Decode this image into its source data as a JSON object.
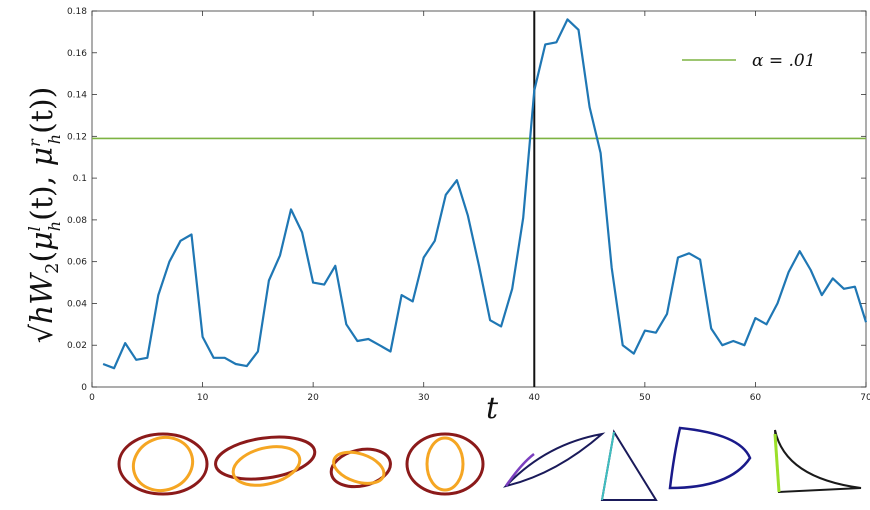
{
  "chart_data": {
    "type": "line",
    "ylabel": "√hW₂(μʰˡ(t), μʰʳ(t))",
    "ylabel_parts": {
      "root": "√",
      "h": "h",
      "W": "W",
      "W_sub": "2",
      "open": "(",
      "mu1": "μ",
      "mu1_sup": "l",
      "mu1_sub": "h",
      "t1": "(t), ",
      "mu2": "μ",
      "mu2_sup": "r",
      "mu2_sub": "h",
      "t2": "(t))"
    },
    "xlabel": "t",
    "xlim": [
      0,
      70
    ],
    "ylim": [
      0,
      0.18
    ],
    "xticks": [
      0,
      10,
      20,
      30,
      40,
      50,
      60,
      70
    ],
    "yticks": [
      0,
      0.02,
      0.04,
      0.06,
      0.08,
      0.1,
      0.12,
      0.14,
      0.16,
      0.18
    ],
    "ytick_labels": [
      "0",
      "0.02",
      "0.04",
      "0.06",
      "0.08",
      "0.1",
      "0.12",
      "0.14",
      "0.16",
      "0.18"
    ],
    "grid": false,
    "legend_position": "top-right",
    "series": [
      {
        "color": "#1f77b4",
        "x": [
          1,
          2,
          3,
          4,
          5,
          6,
          7,
          8,
          9,
          10,
          11,
          12,
          13,
          14,
          15,
          16,
          17,
          18,
          19,
          20,
          21,
          22,
          23,
          24,
          25,
          26,
          27,
          28,
          29,
          30,
          31,
          32,
          33,
          34,
          35,
          36,
          37,
          38,
          39,
          40,
          41,
          42,
          43,
          44,
          45,
          46,
          47,
          48,
          49,
          50,
          51,
          52,
          53,
          54,
          55,
          56,
          57,
          58,
          59,
          60,
          61,
          62,
          63,
          64,
          65,
          66,
          67,
          68,
          69,
          70
        ],
        "y": [
          0.011,
          0.009,
          0.021,
          0.013,
          0.014,
          0.044,
          0.06,
          0.07,
          0.073,
          0.024,
          0.014,
          0.014,
          0.011,
          0.01,
          0.017,
          0.051,
          0.063,
          0.085,
          0.074,
          0.05,
          0.049,
          0.058,
          0.03,
          0.022,
          0.023,
          0.02,
          0.017,
          0.044,
          0.041,
          0.062,
          0.07,
          0.092,
          0.099,
          0.082,
          0.058,
          0.032,
          0.029,
          0.047,
          0.081,
          0.142,
          0.164,
          0.165,
          0.176,
          0.171,
          0.134,
          0.112,
          0.057,
          0.02,
          0.016,
          0.027,
          0.026,
          0.035,
          0.062,
          0.064,
          0.061,
          0.028,
          0.02,
          0.022,
          0.02,
          0.033,
          0.03,
          0.04,
          0.055,
          0.065,
          0.056,
          0.044,
          0.052,
          0.047,
          0.048,
          0.031
        ]
      },
      {
        "name": "α = .01",
        "color": "#7db342",
        "type": "hline",
        "y": 0.119
      }
    ],
    "vline": {
      "x": 40,
      "color": "#111111"
    },
    "thumbnails": [
      {
        "shape": "two-ellipses",
        "color": "#8b1a1a",
        "accent": "#f5a623"
      },
      {
        "shape": "two-ellipses-wide",
        "color": "#8b1a1a",
        "accent": "#f5a623"
      },
      {
        "shape": "two-ellipses-crossed",
        "color": "#8b1a1a",
        "accent": "#f5a623"
      },
      {
        "shape": "two-ellipses-nested",
        "color": "#8b1a1a",
        "accent": "#f5a623"
      },
      {
        "shape": "curved-triangle-flat",
        "color": "#1a1a5a",
        "accent": "#7b3fbf"
      },
      {
        "shape": "triangle-tall",
        "color": "#1a1a5a",
        "accent": "#3fbfbf"
      },
      {
        "shape": "curved-triangle-round",
        "color": "#1a1a8a",
        "accent": "#2a7a2a"
      },
      {
        "shape": "curved-triangle-corner",
        "color": "#1a1a1a",
        "accent": "#9be02a"
      }
    ]
  }
}
